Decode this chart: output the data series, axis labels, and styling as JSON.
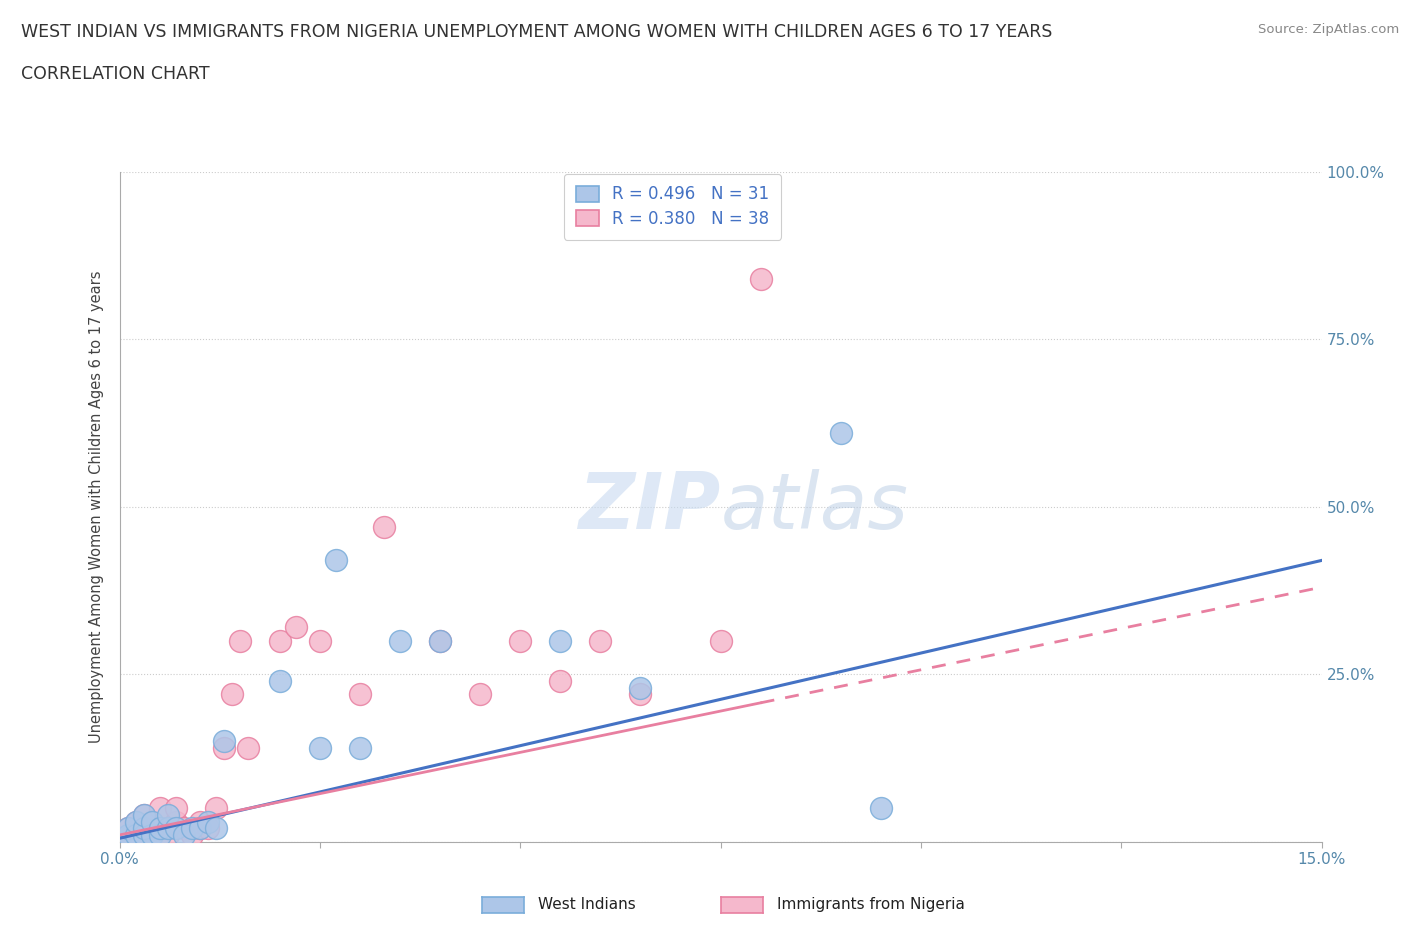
{
  "title_line1": "WEST INDIAN VS IMMIGRANTS FROM NIGERIA UNEMPLOYMENT AMONG WOMEN WITH CHILDREN AGES 6 TO 17 YEARS",
  "title_line2": "CORRELATION CHART",
  "source": "Source: ZipAtlas.com",
  "ylabel": "Unemployment Among Women with Children Ages 6 to 17 years",
  "xlim": [
    0.0,
    0.15
  ],
  "ylim": [
    0.0,
    1.0
  ],
  "xticks": [
    0.0,
    0.025,
    0.05,
    0.075,
    0.1,
    0.125,
    0.15
  ],
  "xticklabels": [
    "0.0%",
    "",
    "",
    "",
    "",
    "",
    "15.0%"
  ],
  "yticks": [
    0.0,
    0.25,
    0.5,
    0.75,
    1.0
  ],
  "yticklabels": [
    "",
    "25.0%",
    "50.0%",
    "75.0%",
    "100.0%"
  ],
  "west_indian_color": "#adc6e8",
  "west_indian_edge": "#7aadda",
  "nigeria_color": "#f5b8cc",
  "nigeria_edge": "#e87fa0",
  "trend_blue": "#4472c4",
  "trend_pink": "#e87fa0",
  "R_west": 0.496,
  "N_west": 31,
  "R_nigeria": 0.38,
  "N_nigeria": 38,
  "watermark": "ZIPatlas",
  "legend_label_west": "West Indians",
  "legend_label_nigeria": "Immigrants from Nigeria",
  "west_x": [
    0.0,
    0.001,
    0.001,
    0.002,
    0.002,
    0.003,
    0.003,
    0.003,
    0.004,
    0.004,
    0.005,
    0.005,
    0.006,
    0.006,
    0.007,
    0.008,
    0.009,
    0.01,
    0.011,
    0.012,
    0.013,
    0.02,
    0.025,
    0.027,
    0.03,
    0.035,
    0.04,
    0.055,
    0.065,
    0.09,
    0.095
  ],
  "west_y": [
    0.005,
    0.01,
    0.02,
    0.01,
    0.03,
    0.01,
    0.02,
    0.04,
    0.01,
    0.03,
    0.01,
    0.02,
    0.02,
    0.04,
    0.02,
    0.01,
    0.02,
    0.02,
    0.03,
    0.02,
    0.15,
    0.24,
    0.14,
    0.42,
    0.14,
    0.3,
    0.3,
    0.3,
    0.23,
    0.61,
    0.05
  ],
  "nigeria_x": [
    0.0,
    0.001,
    0.001,
    0.002,
    0.002,
    0.003,
    0.003,
    0.004,
    0.004,
    0.005,
    0.005,
    0.006,
    0.006,
    0.007,
    0.007,
    0.008,
    0.009,
    0.01,
    0.01,
    0.011,
    0.012,
    0.013,
    0.014,
    0.015,
    0.016,
    0.02,
    0.022,
    0.025,
    0.03,
    0.033,
    0.04,
    0.045,
    0.05,
    0.055,
    0.06,
    0.065,
    0.075,
    0.08
  ],
  "nigeria_y": [
    0.005,
    0.01,
    0.02,
    0.01,
    0.03,
    0.02,
    0.04,
    0.01,
    0.03,
    0.02,
    0.05,
    0.02,
    0.01,
    0.03,
    0.05,
    0.02,
    0.01,
    0.02,
    0.03,
    0.02,
    0.05,
    0.14,
    0.22,
    0.3,
    0.14,
    0.3,
    0.32,
    0.3,
    0.22,
    0.47,
    0.3,
    0.22,
    0.3,
    0.24,
    0.3,
    0.22,
    0.3,
    0.84
  ]
}
